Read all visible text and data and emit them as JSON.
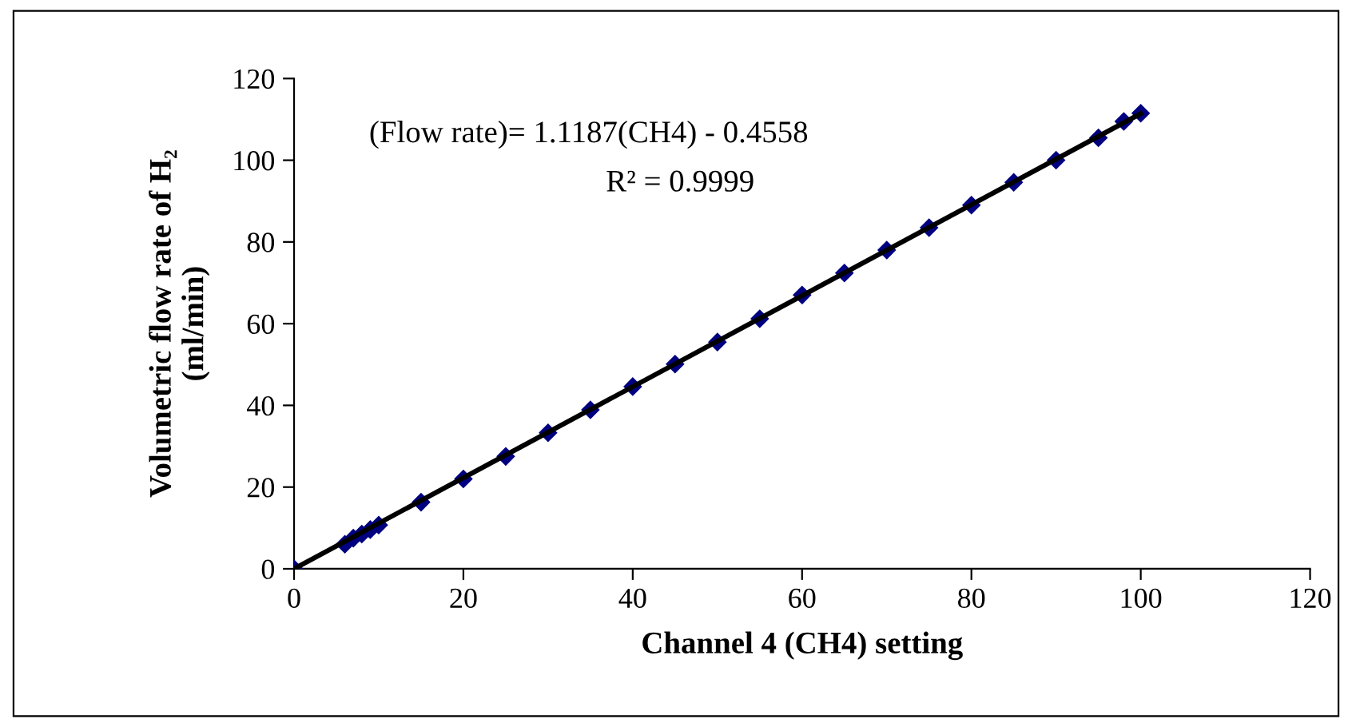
{
  "chart_data": {
    "type": "scatter",
    "xlabel": "Channel 4 (CH4) setting",
    "ylabel": "Volumetric flow rate of H₂\n(ml/min)",
    "annotations": [
      "(Flow rate)= 1.1187(CH4) - 0.4558",
      "R² = 0.9999"
    ],
    "xlim": [
      0,
      120
    ],
    "xticks": [
      0,
      20,
      40,
      60,
      80,
      100,
      120
    ],
    "ylim": [
      0,
      120
    ],
    "yticks": [
      0,
      20,
      40,
      60,
      80,
      100,
      120
    ],
    "grid": false,
    "legend": false,
    "series": [
      {
        "marker": "diamond",
        "color": "#000080",
        "x": [
          0,
          6,
          7,
          8,
          9,
          10,
          15,
          20,
          25,
          30,
          35,
          40,
          45,
          50,
          55,
          60,
          65,
          70,
          75,
          80,
          85,
          90,
          95,
          98,
          100
        ],
        "values": [
          0,
          6,
          7.5,
          8.5,
          9.6,
          10.7,
          16.3,
          22,
          27.5,
          33.3,
          38.9,
          44.6,
          50.1,
          55.5,
          61.2,
          67,
          72.4,
          78,
          83.5,
          89,
          94.6,
          100,
          105.5,
          109.5,
          111.5
        ]
      },
      {
        "type": "line",
        "color": "#000000",
        "x": [
          0,
          100
        ],
        "values": [
          0,
          111.4
        ]
      }
    ]
  }
}
